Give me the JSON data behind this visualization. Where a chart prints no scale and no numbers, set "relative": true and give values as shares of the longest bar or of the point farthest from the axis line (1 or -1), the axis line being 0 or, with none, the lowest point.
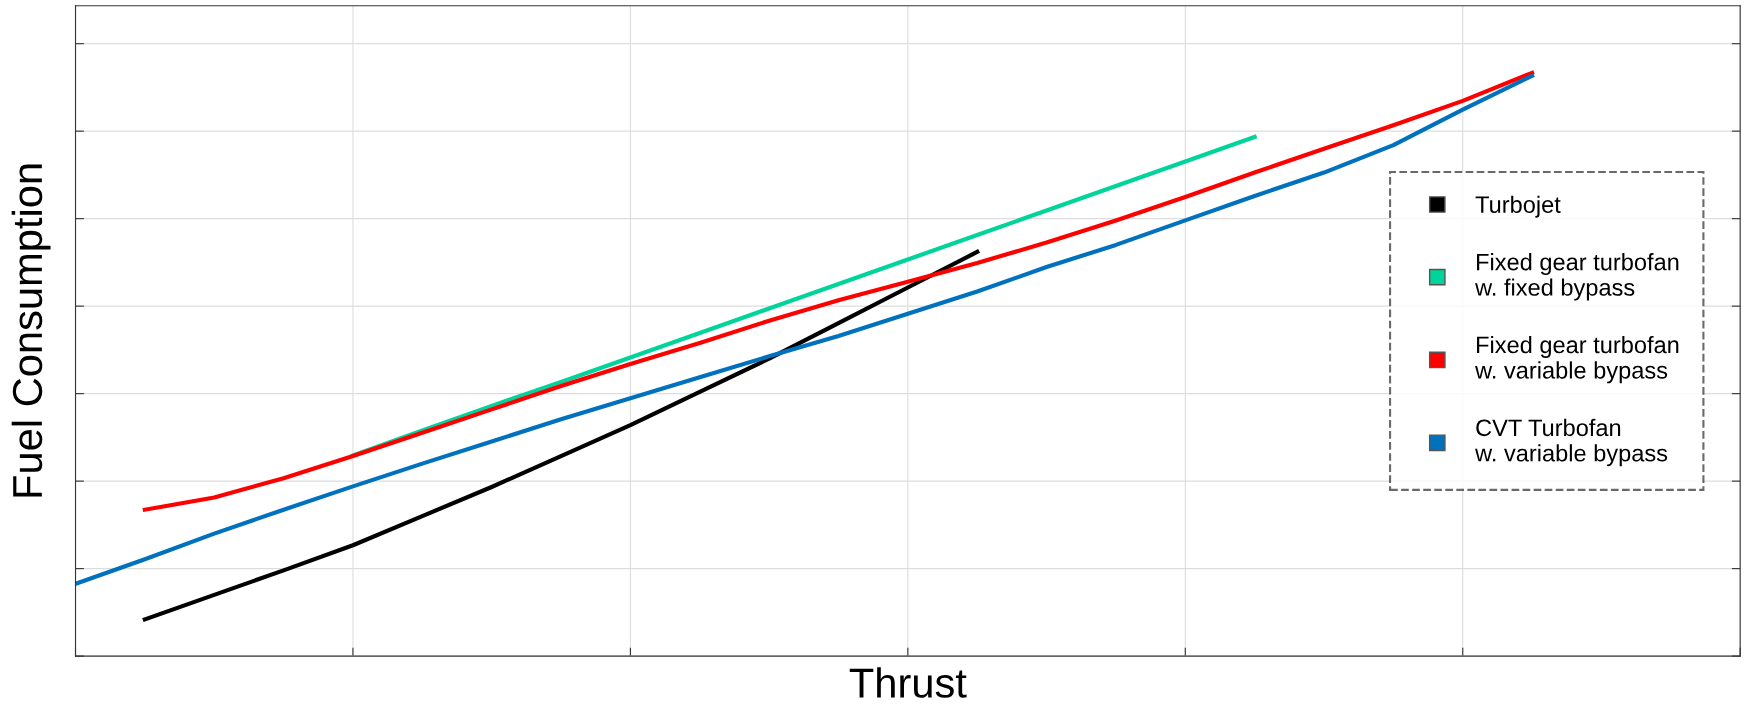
{
  "chart_data": {
    "type": "line",
    "relative": true,
    "xlabel": "Thrust",
    "ylabel": "Fuel Consumption",
    "grid": true,
    "legend": "right",
    "marker": "none",
    "line_style": "solid",
    "categories": [
      null,
      null,
      null,
      null,
      null,
      null,
      null,
      null,
      null,
      null,
      null,
      null,
      null,
      null,
      null,
      null,
      null,
      null,
      null,
      null,
      null,
      null,
      null,
      null,
      null
    ],
    "series": [
      {
        "name": "Turbojet",
        "color": "#000000",
        "values": [
          null,
          0.063,
          0.105,
          0.147,
          0.19,
          0.24,
          0.29,
          0.343,
          0.396,
          0.453,
          0.51,
          0.571,
          0.632,
          0.693,
          null,
          null,
          null,
          null,
          null,
          null,
          null,
          null,
          null,
          null,
          null
        ]
      },
      {
        "name": "Fixed gear turbofan\nw. fixed bypass",
        "color": "#00d49a",
        "values": [
          null,
          null,
          null,
          null,
          0.344,
          0.387,
          0.429,
          0.47,
          0.512,
          0.554,
          0.596,
          0.638,
          0.68,
          0.722,
          0.764,
          0.806,
          0.848,
          0.89,
          null,
          null,
          null,
          null,
          null,
          null,
          null
        ]
      },
      {
        "name": "Fixed gear turbofan\nw. variable bypass",
        "color": "#ff0000",
        "values": [
          null,
          0.251,
          0.272,
          0.305,
          0.343,
          0.383,
          0.423,
          0.463,
          0.501,
          0.537,
          0.575,
          0.61,
          0.642,
          0.674,
          0.709,
          0.747,
          0.787,
          0.829,
          0.87,
          0.91,
          0.952,
          1.0,
          null,
          null,
          null
        ]
      },
      {
        "name": "CVT Turbofan\nw. variable bypass",
        "color": "#0072bd",
        "values": [
          0.124,
          0.166,
          0.21,
          0.251,
          0.291,
          0.33,
          0.368,
          0.406,
          0.442,
          0.478,
          0.514,
          0.549,
          0.587,
          0.625,
          0.667,
          0.705,
          0.747,
          0.789,
          0.829,
          0.876,
          0.937,
          0.995,
          null,
          null,
          null
        ]
      }
    ]
  }
}
